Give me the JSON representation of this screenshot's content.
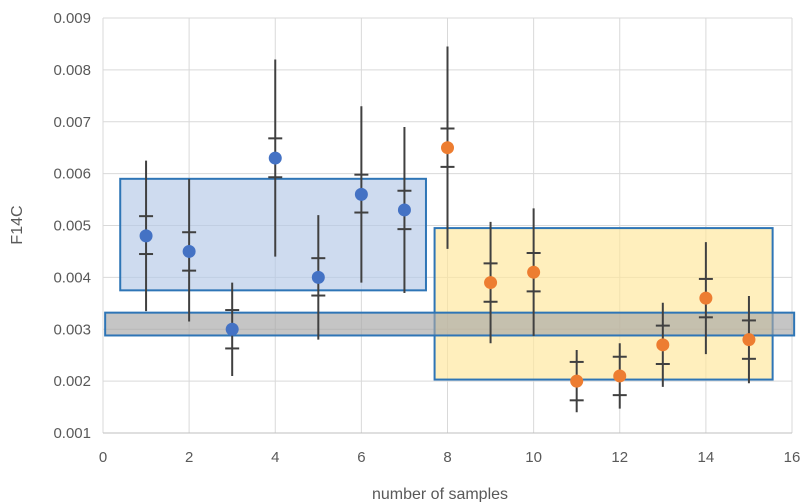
{
  "chart_data": {
    "type": "scatter",
    "xlabel": "number of samples",
    "ylabel": "F14C",
    "xlim": [
      0,
      16
    ],
    "ylim": [
      0.001,
      0.009
    ],
    "x_ticks": [
      0,
      2,
      4,
      6,
      8,
      10,
      12,
      14,
      16
    ],
    "x_tick_labels": [
      "0",
      "2",
      "4",
      "6",
      "8",
      "10",
      "12",
      "14",
      "16"
    ],
    "y_ticks": [
      0.001,
      0.002,
      0.003,
      0.004,
      0.005,
      0.006,
      0.007,
      0.008,
      0.009
    ],
    "y_tick_labels": [
      "0.001",
      "0.002",
      "0.003",
      "0.004",
      "0.005",
      "0.006",
      "0.007",
      "0.008",
      "0.009"
    ],
    "grid": true,
    "legend": "none",
    "colors": {
      "series_blue": "#4472c4",
      "series_orange": "#ed7d31",
      "errorbar": "#404040",
      "box_blue_fill": "#b4c7e7",
      "box_yellow_fill": "#ffe699",
      "box_gray_fill": "#a6a6a6",
      "box_stroke": "#2e75b6",
      "grid": "#d9d9d9"
    },
    "series": [
      {
        "color": "#4472c4",
        "points": [
          {
            "x": 1,
            "y": 0.0048,
            "err_low": 0.00335,
            "err_high": 0.00625,
            "cap_low": 0.00445,
            "cap_high": 0.00518
          },
          {
            "x": 2,
            "y": 0.0045,
            "err_low": 0.00315,
            "err_high": 0.0059,
            "cap_low": 0.00413,
            "cap_high": 0.00487
          },
          {
            "x": 3,
            "y": 0.003,
            "err_low": 0.0021,
            "err_high": 0.0039,
            "cap_low": 0.00263,
            "cap_high": 0.00337
          },
          {
            "x": 4,
            "y": 0.0063,
            "err_low": 0.0044,
            "err_high": 0.0082,
            "cap_low": 0.00593,
            "cap_high": 0.00668
          },
          {
            "x": 5,
            "y": 0.004,
            "err_low": 0.0028,
            "err_high": 0.0052,
            "cap_low": 0.00365,
            "cap_high": 0.00437
          },
          {
            "x": 6,
            "y": 0.0056,
            "err_low": 0.0039,
            "err_high": 0.0073,
            "cap_low": 0.00525,
            "cap_high": 0.00598
          },
          {
            "x": 7,
            "y": 0.0053,
            "err_low": 0.0037,
            "err_high": 0.0069,
            "cap_low": 0.00493,
            "cap_high": 0.00567
          }
        ]
      },
      {
        "color": "#ed7d31",
        "points": [
          {
            "x": 8,
            "y": 0.0065,
            "err_low": 0.00455,
            "err_high": 0.00845,
            "cap_low": 0.00613,
            "cap_high": 0.00687
          },
          {
            "x": 9,
            "y": 0.0039,
            "err_low": 0.00273,
            "err_high": 0.00507,
            "cap_low": 0.00353,
            "cap_high": 0.00427
          },
          {
            "x": 10,
            "y": 0.0041,
            "err_low": 0.00287,
            "err_high": 0.00533,
            "cap_low": 0.00373,
            "cap_high": 0.00447
          },
          {
            "x": 11,
            "y": 0.002,
            "err_low": 0.0014,
            "err_high": 0.0026,
            "cap_low": 0.00163,
            "cap_high": 0.00237
          },
          {
            "x": 12,
            "y": 0.0021,
            "err_low": 0.00147,
            "err_high": 0.00273,
            "cap_low": 0.00173,
            "cap_high": 0.00247
          },
          {
            "x": 13,
            "y": 0.0027,
            "err_low": 0.00189,
            "err_high": 0.00351,
            "cap_low": 0.00233,
            "cap_high": 0.00307
          },
          {
            "x": 14,
            "y": 0.0036,
            "err_low": 0.00252,
            "err_high": 0.00468,
            "cap_low": 0.00323,
            "cap_high": 0.00397
          },
          {
            "x": 15,
            "y": 0.0028,
            "err_low": 0.00196,
            "err_high": 0.00364,
            "cap_low": 0.00243,
            "cap_high": 0.00317
          }
        ]
      }
    ],
    "regions": [
      {
        "x0": 0.4,
        "x1": 7.5,
        "y0": 0.00375,
        "y1": 0.0059,
        "fill": "#b4c7e7"
      },
      {
        "x0": 7.7,
        "x1": 15.55,
        "y0": 0.00203,
        "y1": 0.00495,
        "fill": "#ffe699"
      },
      {
        "x0": 0.05,
        "x1": 16.05,
        "y0": 0.00288,
        "y1": 0.00332,
        "fill": "#a6a6a6"
      }
    ]
  }
}
